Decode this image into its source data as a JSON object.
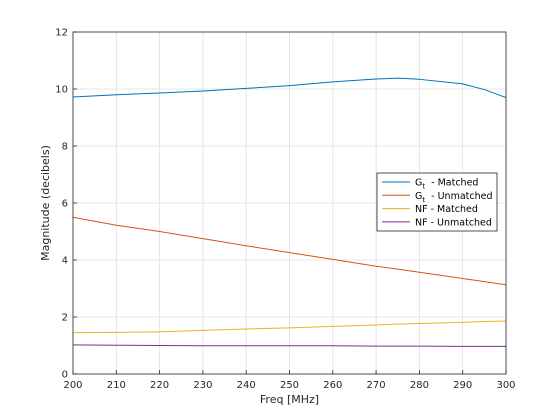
{
  "chart_data": {
    "type": "line",
    "title": "",
    "xlabel": "Freq [MHz]",
    "ylabel": "Magnitude (decibels)",
    "xlim": [
      200,
      300
    ],
    "ylim": [
      0,
      12
    ],
    "xticks": [
      200,
      210,
      220,
      230,
      240,
      250,
      260,
      270,
      280,
      290,
      300
    ],
    "yticks": [
      0,
      2,
      4,
      6,
      8,
      10,
      12
    ],
    "grid": true,
    "legend_position": "right",
    "x": [
      200,
      210,
      220,
      230,
      240,
      250,
      260,
      270,
      275,
      280,
      290,
      295,
      300
    ],
    "series": [
      {
        "name": "Gt - Matched",
        "name_parts": {
          "main": "G",
          "sub": "t",
          "rest": " - Matched"
        },
        "color": "#0072bd",
        "values": [
          9.72,
          9.8,
          9.86,
          9.93,
          10.02,
          10.12,
          10.25,
          10.35,
          10.38,
          10.34,
          10.18,
          9.98,
          9.7
        ]
      },
      {
        "name": "Gt - Unmatched",
        "name_parts": {
          "main": "G",
          "sub": "t",
          "rest": " - Unmatched"
        },
        "color": "#d95319",
        "values": [
          5.5,
          5.22,
          5.0,
          4.75,
          4.5,
          4.26,
          4.02,
          3.78,
          3.68,
          3.57,
          3.35,
          3.24,
          3.13
        ]
      },
      {
        "name": "NF - Matched",
        "name_parts": {
          "main": "NF - Matched",
          "sub": "",
          "rest": ""
        },
        "color": "#edb120",
        "values": [
          1.45,
          1.46,
          1.48,
          1.53,
          1.58,
          1.62,
          1.67,
          1.72,
          1.75,
          1.77,
          1.81,
          1.84,
          1.86
        ]
      },
      {
        "name": "NF - Unmatched",
        "name_parts": {
          "main": "NF - Unmatched",
          "sub": "",
          "rest": ""
        },
        "color": "#7e2f8e",
        "values": [
          1.02,
          1.01,
          1.0,
          0.99,
          0.99,
          0.99,
          0.99,
          0.98,
          0.98,
          0.98,
          0.97,
          0.97,
          0.97
        ]
      }
    ]
  }
}
